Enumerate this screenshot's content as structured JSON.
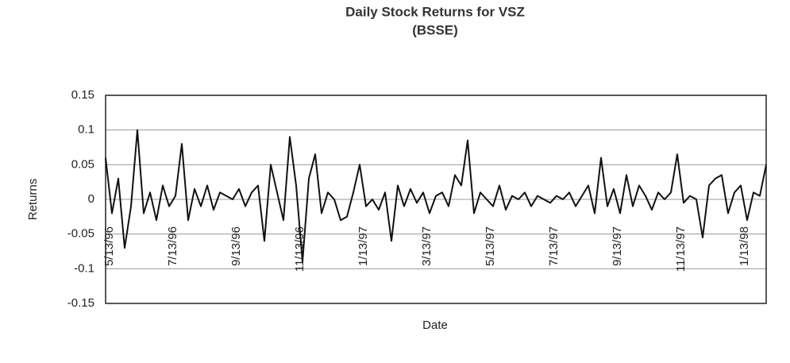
{
  "chart_data": {
    "type": "line",
    "title": "Daily Stock Returns for VSZ",
    "subtitle": "(BSSE)",
    "y_label": "Returns",
    "x_label": "Date",
    "categories": [
      "5/13/96",
      null,
      null,
      null,
      null,
      null,
      null,
      null,
      null,
      null,
      "7/13/96",
      null,
      null,
      null,
      null,
      null,
      null,
      null,
      null,
      null,
      "9/13/96",
      null,
      null,
      null,
      null,
      null,
      null,
      null,
      null,
      null,
      "11/13/96",
      null,
      null,
      null,
      null,
      null,
      null,
      null,
      null,
      null,
      "1/13/97",
      null,
      null,
      null,
      null,
      null,
      null,
      null,
      null,
      null,
      "3/13/97",
      null,
      null,
      null,
      null,
      null,
      null,
      null,
      null,
      null,
      "5/13/97",
      null,
      null,
      null,
      null,
      null,
      null,
      null,
      null,
      null,
      "7/13/97",
      null,
      null,
      null,
      null,
      null,
      null,
      null,
      null,
      null,
      "9/13/97",
      null,
      null,
      null,
      null,
      null,
      null,
      null,
      null,
      null,
      "11/13/97",
      null,
      null,
      null,
      null,
      null,
      null,
      null,
      null,
      null,
      "1/13/98",
      null,
      null,
      null,
      null
    ],
    "series": [
      {
        "name": "Returns",
        "color": "#111111",
        "values": [
          0.06,
          -0.02,
          0.03,
          -0.07,
          -0.01,
          0.1,
          -0.02,
          0.01,
          -0.03,
          0.02,
          -0.01,
          0.005,
          0.08,
          -0.03,
          0.015,
          -0.01,
          0.02,
          -0.015,
          0.01,
          0.005,
          0.0,
          0.015,
          -0.01,
          0.01,
          0.02,
          -0.06,
          0.05,
          0.01,
          -0.03,
          0.09,
          0.02,
          -0.09,
          0.03,
          0.065,
          -0.02,
          0.01,
          0.0,
          -0.03,
          -0.025,
          0.01,
          0.05,
          -0.01,
          0.0,
          -0.015,
          0.01,
          -0.06,
          0.02,
          -0.01,
          0.015,
          -0.005,
          0.01,
          -0.02,
          0.005,
          0.01,
          -0.01,
          0.035,
          0.02,
          0.085,
          -0.02,
          0.01,
          0.0,
          -0.01,
          0.02,
          -0.015,
          0.005,
          0.0,
          0.01,
          -0.01,
          0.005,
          0.0,
          -0.005,
          0.005,
          0.0,
          0.01,
          -0.01,
          0.005,
          0.02,
          -0.02,
          0.06,
          -0.01,
          0.015,
          -0.02,
          0.035,
          -0.01,
          0.02,
          0.005,
          -0.015,
          0.01,
          0.0,
          0.01,
          0.065,
          -0.005,
          0.005,
          0.0,
          -0.055,
          0.02,
          0.03,
          0.035,
          -0.02,
          0.01,
          0.02,
          -0.03,
          0.01,
          0.005,
          0.05
        ]
      }
    ],
    "ylim": [
      -0.15,
      0.15
    ],
    "yticks": [
      -0.15,
      -0.1,
      -0.05,
      0,
      0.05,
      0.1,
      0.15
    ],
    "grid": true
  }
}
